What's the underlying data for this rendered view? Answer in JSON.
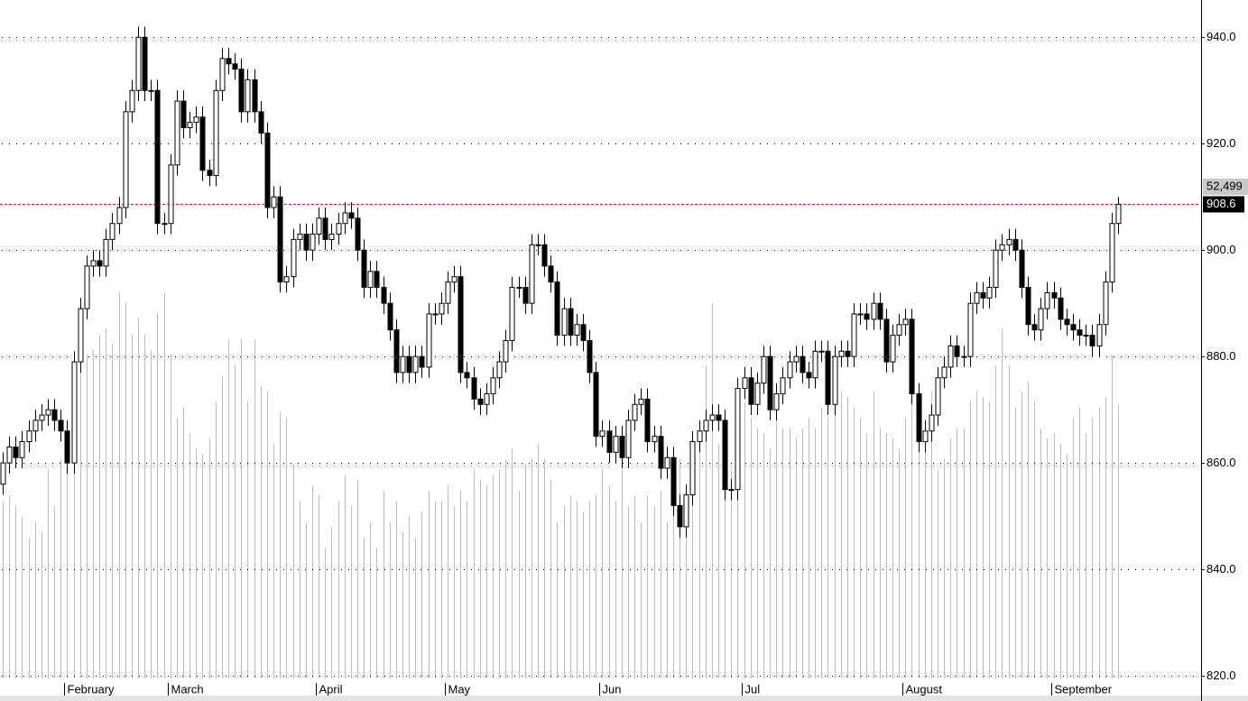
{
  "chart_data": {
    "type": "candlestick",
    "categories": [
      null,
      null,
      null,
      null,
      null,
      null,
      null,
      null,
      null,
      null,
      "February",
      null,
      null,
      null,
      null,
      null,
      null,
      null,
      null,
      null,
      null,
      null,
      null,
      null,
      null,
      null,
      "March",
      null,
      null,
      null,
      null,
      null,
      null,
      null,
      null,
      null,
      null,
      null,
      null,
      null,
      null,
      null,
      null,
      null,
      null,
      null,
      null,
      null,
      null,
      "April",
      null,
      null,
      null,
      null,
      null,
      null,
      null,
      null,
      null,
      null,
      null,
      null,
      null,
      null,
      null,
      null,
      null,
      null,
      null,
      "May",
      null,
      null,
      null,
      null,
      null,
      null,
      null,
      null,
      null,
      null,
      null,
      null,
      null,
      null,
      null,
      null,
      null,
      null,
      null,
      null,
      null,
      null,
      null,
      "Jun",
      null,
      null,
      null,
      null,
      null,
      null,
      null,
      null,
      null,
      null,
      null,
      null,
      null,
      null,
      null,
      null,
      null,
      null,
      null,
      null,
      null,
      "Jul",
      null,
      null,
      null,
      null,
      null,
      null,
      null,
      null,
      null,
      null,
      null,
      null,
      null,
      null,
      null,
      null,
      null,
      null,
      null,
      null,
      null,
      null,
      null,
      null,
      "August",
      null,
      null,
      null,
      null,
      null,
      null,
      null,
      null,
      null,
      null,
      null,
      null,
      null,
      null,
      null,
      null,
      null,
      null,
      null,
      null,
      null,
      null,
      "September",
      null,
      null,
      null,
      null,
      null,
      null,
      null,
      null,
      null,
      null
    ],
    "open": [
      856,
      860,
      863,
      861,
      864,
      866,
      868,
      869,
      870,
      868,
      866,
      860,
      879,
      889,
      897,
      898,
      897,
      902,
      905,
      908,
      926,
      930,
      940,
      930,
      930,
      905,
      905,
      916,
      928,
      923,
      924,
      925,
      915,
      914,
      930,
      936,
      935,
      934,
      926,
      932,
      926,
      922,
      908,
      910,
      894,
      895,
      902,
      903,
      900,
      903,
      906,
      902,
      903,
      905,
      907,
      906,
      900,
      893,
      896,
      893,
      890,
      885,
      877,
      880,
      877,
      880,
      878,
      888,
      888,
      890,
      894,
      895,
      877,
      876,
      872,
      871,
      873,
      876,
      879,
      883,
      893,
      893,
      890,
      901,
      901,
      897,
      894,
      884,
      889,
      884,
      886,
      883,
      877,
      865,
      866,
      862,
      865,
      861,
      868,
      871,
      872,
      864,
      865,
      859,
      861,
      852,
      848,
      854,
      864,
      866,
      868,
      869,
      868,
      855,
      855,
      874,
      876,
      871,
      875,
      880,
      870,
      873,
      876,
      879,
      880,
      877,
      876,
      881,
      881,
      871,
      880,
      881,
      880,
      888,
      888,
      887,
      890,
      887,
      879,
      884,
      886,
      887,
      873,
      864,
      866,
      869,
      876,
      878,
      882,
      880,
      880,
      890,
      892,
      891,
      893,
      900,
      901,
      902,
      900,
      893,
      886,
      885,
      889,
      892,
      891,
      887,
      886,
      885,
      884,
      884,
      882,
      886,
      894,
      905
    ],
    "high": [
      862,
      865,
      865,
      866,
      868,
      870,
      871,
      872,
      872,
      870,
      868,
      881,
      891,
      899,
      900,
      900,
      904,
      907,
      910,
      928,
      932,
      942,
      942,
      932,
      932,
      907,
      918,
      930,
      930,
      926,
      927,
      927,
      917,
      932,
      938,
      938,
      937,
      936,
      934,
      934,
      928,
      924,
      912,
      912,
      897,
      904,
      905,
      905,
      905,
      908,
      908,
      905,
      907,
      909,
      909,
      908,
      902,
      898,
      898,
      895,
      892,
      887,
      882,
      882,
      882,
      882,
      890,
      890,
      892,
      896,
      897,
      897,
      879,
      878,
      874,
      875,
      878,
      881,
      885,
      895,
      895,
      895,
      903,
      903,
      903,
      899,
      896,
      891,
      891,
      888,
      888,
      885,
      879,
      868,
      868,
      867,
      867,
      870,
      873,
      874,
      874,
      867,
      867,
      863,
      863,
      854,
      856,
      866,
      868,
      870,
      871,
      871,
      870,
      857,
      876,
      878,
      878,
      877,
      882,
      882,
      875,
      878,
      881,
      882,
      882,
      879,
      883,
      883,
      883,
      882,
      883,
      883,
      890,
      890,
      890,
      892,
      892,
      889,
      886,
      888,
      889,
      889,
      875,
      868,
      871,
      878,
      880,
      884,
      884,
      882,
      892,
      894,
      894,
      895,
      902,
      903,
      904,
      904,
      902,
      895,
      888,
      891,
      894,
      894,
      893,
      889,
      888,
      887,
      886,
      886,
      888,
      896,
      907,
      910
    ],
    "low": [
      854,
      858,
      859,
      859,
      862,
      864,
      866,
      867,
      866,
      864,
      858,
      858,
      877,
      887,
      895,
      895,
      895,
      900,
      903,
      906,
      924,
      928,
      928,
      928,
      903,
      903,
      903,
      914,
      921,
      921,
      922,
      913,
      912,
      912,
      928,
      933,
      932,
      924,
      924,
      924,
      920,
      906,
      906,
      892,
      892,
      893,
      900,
      898,
      898,
      901,
      900,
      900,
      901,
      903,
      904,
      898,
      891,
      891,
      891,
      888,
      883,
      875,
      875,
      875,
      875,
      876,
      876,
      886,
      886,
      888,
      892,
      875,
      874,
      870,
      869,
      869,
      871,
      874,
      877,
      881,
      891,
      888,
      888,
      899,
      895,
      892,
      882,
      882,
      882,
      882,
      881,
      875,
      863,
      863,
      860,
      860,
      859,
      859,
      866,
      869,
      862,
      862,
      857,
      857,
      850,
      846,
      846,
      852,
      862,
      864,
      866,
      866,
      853,
      853,
      853,
      872,
      869,
      869,
      873,
      868,
      868,
      871,
      874,
      877,
      875,
      874,
      874,
      879,
      869,
      869,
      878,
      878,
      878,
      886,
      885,
      885,
      885,
      877,
      877,
      882,
      884,
      871,
      862,
      862,
      864,
      867,
      874,
      876,
      878,
      878,
      878,
      888,
      889,
      889,
      891,
      898,
      899,
      898,
      891,
      884,
      883,
      883,
      887,
      889,
      885,
      884,
      883,
      882,
      882,
      880,
      880,
      884,
      892,
      903
    ],
    "close": [
      860,
      863,
      861,
      864,
      866,
      868,
      869,
      870,
      868,
      866,
      860,
      879,
      889,
      897,
      898,
      897,
      902,
      905,
      908,
      926,
      930,
      940,
      930,
      930,
      905,
      905,
      916,
      928,
      923,
      924,
      925,
      915,
      914,
      930,
      936,
      935,
      934,
      926,
      932,
      926,
      922,
      908,
      910,
      894,
      895,
      902,
      903,
      900,
      903,
      906,
      902,
      903,
      905,
      907,
      906,
      900,
      893,
      896,
      893,
      890,
      885,
      877,
      880,
      877,
      880,
      878,
      888,
      888,
      890,
      894,
      895,
      877,
      876,
      872,
      871,
      873,
      876,
      879,
      883,
      893,
      893,
      890,
      901,
      901,
      897,
      894,
      884,
      889,
      884,
      886,
      883,
      877,
      865,
      866,
      862,
      865,
      861,
      868,
      871,
      872,
      864,
      865,
      859,
      861,
      852,
      848,
      854,
      864,
      866,
      868,
      869,
      868,
      855,
      855,
      874,
      876,
      871,
      875,
      880,
      870,
      873,
      876,
      879,
      880,
      877,
      876,
      881,
      881,
      871,
      880,
      881,
      880,
      888,
      888,
      887,
      890,
      887,
      879,
      884,
      886,
      887,
      873,
      864,
      866,
      869,
      876,
      878,
      882,
      880,
      880,
      890,
      892,
      891,
      893,
      900,
      901,
      902,
      900,
      893,
      886,
      885,
      889,
      892,
      891,
      887,
      886,
      885,
      884,
      884,
      882,
      886,
      894,
      905,
      908.6
    ],
    "volume": {
      "color": "#bdbdbd",
      "values": [
        34000,
        35000,
        33000,
        31000,
        27000,
        30000,
        28000,
        40000,
        33000,
        42000,
        45000,
        52000,
        60000,
        62000,
        63000,
        66000,
        67000,
        64000,
        74000,
        72000,
        66000,
        69000,
        66000,
        63000,
        70000,
        74000,
        62000,
        50000,
        52000,
        47000,
        44000,
        43000,
        46000,
        53000,
        58000,
        65000,
        60000,
        65000,
        53000,
        65000,
        56000,
        55000,
        45000,
        51000,
        50000,
        41000,
        34000,
        30000,
        37000,
        35000,
        25000,
        29000,
        34000,
        39000,
        33000,
        38000,
        27000,
        30000,
        25000,
        36000,
        30000,
        34000,
        28000,
        31000,
        27000,
        32000,
        36000,
        34000,
        34000,
        37000,
        33000,
        36000,
        34000,
        40000,
        38000,
        37000,
        39000,
        40000,
        42000,
        44000,
        36000,
        41000,
        42000,
        45000,
        42000,
        38000,
        30000,
        33000,
        35000,
        34000,
        32000,
        34000,
        35000,
        40000,
        37000,
        34000,
        45000,
        33000,
        35000,
        30000,
        35000,
        33000,
        36000,
        30000,
        32000,
        42000,
        36000,
        38000,
        45000,
        60000,
        72000,
        45000,
        42000,
        40000,
        43000,
        53000,
        50000,
        48000,
        47000,
        44000,
        50000,
        48000,
        48000,
        46000,
        48000,
        50000,
        48000,
        52000,
        50000,
        53000,
        55000,
        54000,
        52000,
        50000,
        47000,
        55000,
        48000,
        47000,
        46000,
        44000,
        50000,
        54000,
        50000,
        46000,
        55000,
        40000,
        42000,
        46000,
        48000,
        48000,
        53000,
        55000,
        54000,
        53000,
        60000,
        67000,
        60000,
        52000,
        55000,
        57000,
        53000,
        48000,
        46000,
        47000,
        45000,
        43000,
        50000,
        52000,
        47000,
        50000,
        52000,
        54000,
        62000,
        52499
      ]
    },
    "last_volume_label": "52,499",
    "up_color": "#ffffff",
    "down_color": "#000000",
    "last_close_line_color": "#e02020",
    "grid": true,
    "ylim": [
      819.5,
      947
    ],
    "yticks": [
      {
        "value": 820,
        "label": "820.0"
      },
      {
        "value": 840,
        "label": "840.0"
      },
      {
        "value": 860,
        "label": "860.0"
      },
      {
        "value": 880,
        "label": "880.0"
      },
      {
        "value": 900,
        "label": "900.0"
      },
      {
        "value": 920,
        "label": "920.0"
      },
      {
        "value": 940,
        "label": "940.0"
      }
    ],
    "y2lim": [
      0,
      130000
    ]
  }
}
